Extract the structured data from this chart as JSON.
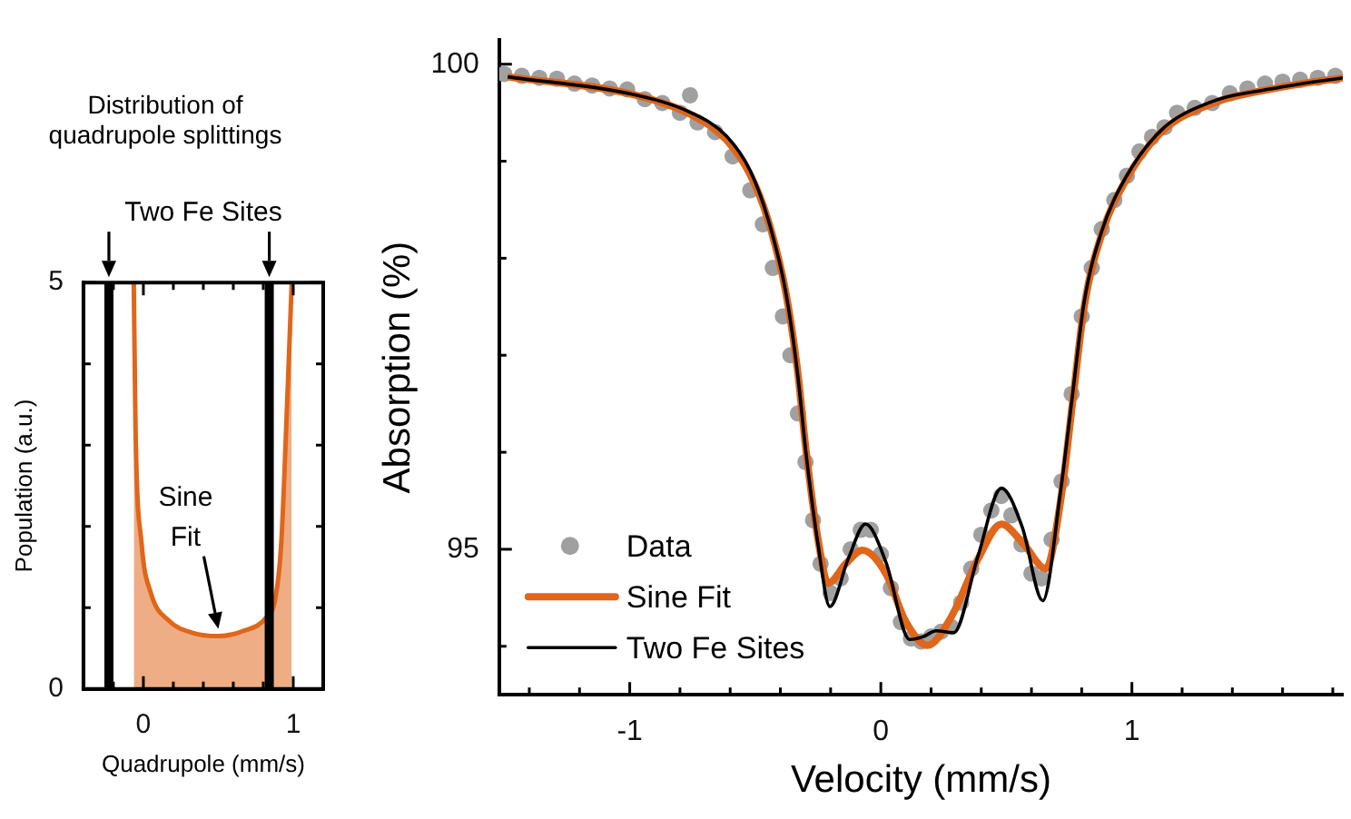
{
  "chart_data": [
    {
      "type": "area",
      "title": "Distribution of quadrupole splittings",
      "xlabel": "Quadrupole (mm/s)",
      "ylabel": "Population (a.u.)",
      "xlim": [
        -0.4,
        1.2
      ],
      "xticks": [
        {
          "value": -0.2,
          "label": null
        },
        0,
        {
          "value": 0.2,
          "label": null
        },
        {
          "value": 0.4,
          "label": null
        },
        {
          "value": 0.6,
          "label": null
        },
        {
          "value": 0.8,
          "label": null
        },
        1
      ],
      "ylim": [
        0,
        5
      ],
      "yticks": [
        0,
        {
          "value": 1,
          "label": null
        },
        {
          "value": 2,
          "label": null
        },
        {
          "value": 3,
          "label": null
        },
        {
          "value": 4,
          "label": null
        },
        5
      ],
      "series": [
        {
          "color": "#e0661a",
          "x": [
            -0.064,
            -0.052,
            -0.012,
            0.05,
            0.17,
            0.33,
            0.5,
            0.66,
            0.82,
            0.88,
            0.92,
            0.96,
            0.99
          ],
          "values": [
            5,
            3.17,
            1.79,
            1.18,
            0.84,
            0.69,
            0.65,
            0.71,
            0.88,
            1.11,
            1.79,
            3.55,
            5
          ]
        }
      ],
      "ref_lines": [
        {
          "axis": "x",
          "value": -0.23,
          "color": "#000000"
        },
        {
          "axis": "x",
          "value": 0.84,
          "color": "#000000"
        }
      ],
      "annotations": [
        "Two Fe Sites",
        "Sine Fit"
      ]
    },
    {
      "type": "line",
      "xlabel": "Velocity (mm/s)",
      "ylabel": "Absorption (%)",
      "legend": "bottom left",
      "xlim": [
        -1.52,
        1.84
      ],
      "xticks": [
        {
          "value": -1.4,
          "label": null
        },
        {
          "value": -1.2,
          "label": null
        },
        -1,
        {
          "value": -0.8,
          "label": null
        },
        {
          "value": -0.6,
          "label": null
        },
        {
          "value": -0.4,
          "label": null
        },
        {
          "value": -0.2,
          "label": null
        },
        0,
        {
          "value": 0.2,
          "label": null
        },
        {
          "value": 0.4,
          "label": null
        },
        {
          "value": 0.6,
          "label": null
        },
        {
          "value": 0.8,
          "label": null
        },
        1,
        {
          "value": 1.2,
          "label": null
        },
        {
          "value": 1.4,
          "label": null
        },
        {
          "value": 1.6,
          "label": null
        },
        {
          "value": 1.8,
          "label": null
        }
      ],
      "ylim": [
        93.5,
        100.25
      ],
      "yticks": [
        {
          "value": 94,
          "label": null
        },
        95,
        {
          "value": 96,
          "label": null
        },
        {
          "value": 97,
          "label": null
        },
        {
          "value": 98,
          "label": null
        },
        {
          "value": 99,
          "label": null
        },
        100
      ],
      "series": [
        {
          "name": "Data",
          "type": "scatter",
          "marker": "circle",
          "color": "#a0a0a0",
          "x": [
            -1.5,
            -1.43,
            -1.36,
            -1.29,
            -1.22,
            -1.15,
            -1.08,
            -1.01,
            -0.94,
            -0.87,
            -0.8,
            -0.76,
            -0.73,
            -0.66,
            -0.59,
            -0.52,
            -0.47,
            -0.43,
            -0.39,
            -0.36,
            -0.33,
            -0.3,
            -0.27,
            -0.24,
            -0.2,
            -0.16,
            -0.12,
            -0.08,
            -0.04,
            0,
            0.04,
            0.08,
            0.12,
            0.16,
            0.2,
            0.24,
            0.28,
            0.32,
            0.36,
            0.4,
            0.44,
            0.48,
            0.52,
            0.56,
            0.6,
            0.64,
            0.68,
            0.72,
            0.76,
            0.8,
            0.84,
            0.88,
            0.93,
            0.98,
            1.03,
            1.08,
            1.13,
            1.18,
            1.25,
            1.32,
            1.39,
            1.46,
            1.53,
            1.6,
            1.67,
            1.74,
            1.81
          ],
          "values": [
            99.9,
            99.88,
            99.86,
            99.85,
            99.8,
            99.78,
            99.75,
            99.74,
            99.64,
            99.6,
            99.5,
            99.68,
            99.4,
            99.3,
            99.05,
            98.7,
            98.35,
            97.9,
            97.4,
            97.0,
            96.4,
            95.9,
            95.3,
            94.85,
            94.55,
            94.7,
            95.0,
            95.2,
            95.2,
            94.95,
            94.6,
            94.25,
            94.08,
            94.05,
            94.1,
            94.15,
            94.2,
            94.45,
            94.8,
            95.15,
            95.4,
            95.55,
            95.35,
            95.05,
            94.75,
            94.7,
            95.1,
            95.7,
            96.6,
            97.4,
            97.9,
            98.3,
            98.6,
            98.85,
            99.1,
            99.25,
            99.35,
            99.5,
            99.55,
            99.6,
            99.7,
            99.75,
            99.8,
            99.82,
            99.84,
            99.86,
            99.88
          ]
        },
        {
          "name": "Sine Fit",
          "type": "line",
          "color": "#e0661a",
          "x": [
            -1.486,
            -0.99,
            -0.756,
            -0.615,
            -0.52,
            -0.45,
            -0.38,
            -0.332,
            -0.297,
            -0.25,
            -0.21,
            -0.14,
            -0.073,
            0.02,
            0.1,
            0.186,
            0.28,
            0.387,
            0.48,
            0.57,
            0.657,
            0.716,
            0.763,
            0.81,
            0.88,
            0.975,
            1.117,
            1.305,
            1.588,
            1.84
          ],
          "values": [
            99.87,
            99.69,
            99.48,
            99.22,
            98.86,
            98.4,
            97.67,
            96.85,
            96.0,
            95.1,
            94.65,
            94.85,
            94.99,
            94.75,
            94.25,
            94.01,
            94.3,
            94.9,
            95.26,
            95.05,
            94.8,
            95.5,
            96.5,
            97.5,
            98.25,
            98.8,
            99.3,
            99.58,
            99.76,
            99.86
          ]
        },
        {
          "name": "Two Fe Sites",
          "type": "line",
          "color": "#000000",
          "x": [
            -1.486,
            -0.99,
            -0.756,
            -0.615,
            -0.52,
            -0.45,
            -0.38,
            -0.332,
            -0.297,
            -0.25,
            -0.203,
            -0.13,
            -0.061,
            0.02,
            0.115,
            0.17,
            0.22,
            0.29,
            0.387,
            0.48,
            0.563,
            0.645,
            0.716,
            0.763,
            0.81,
            0.88,
            0.975,
            1.117,
            1.305,
            1.588,
            1.84
          ],
          "values": [
            99.87,
            99.69,
            99.5,
            99.26,
            98.9,
            98.41,
            97.67,
            96.82,
            95.97,
            95.05,
            94.41,
            94.9,
            95.26,
            94.87,
            94.07,
            94.1,
            94.16,
            94.14,
            94.93,
            95.63,
            95.23,
            94.47,
            95.6,
            96.58,
            97.55,
            98.28,
            98.83,
            99.32,
            99.6,
            99.76,
            99.86
          ]
        }
      ]
    }
  ]
}
